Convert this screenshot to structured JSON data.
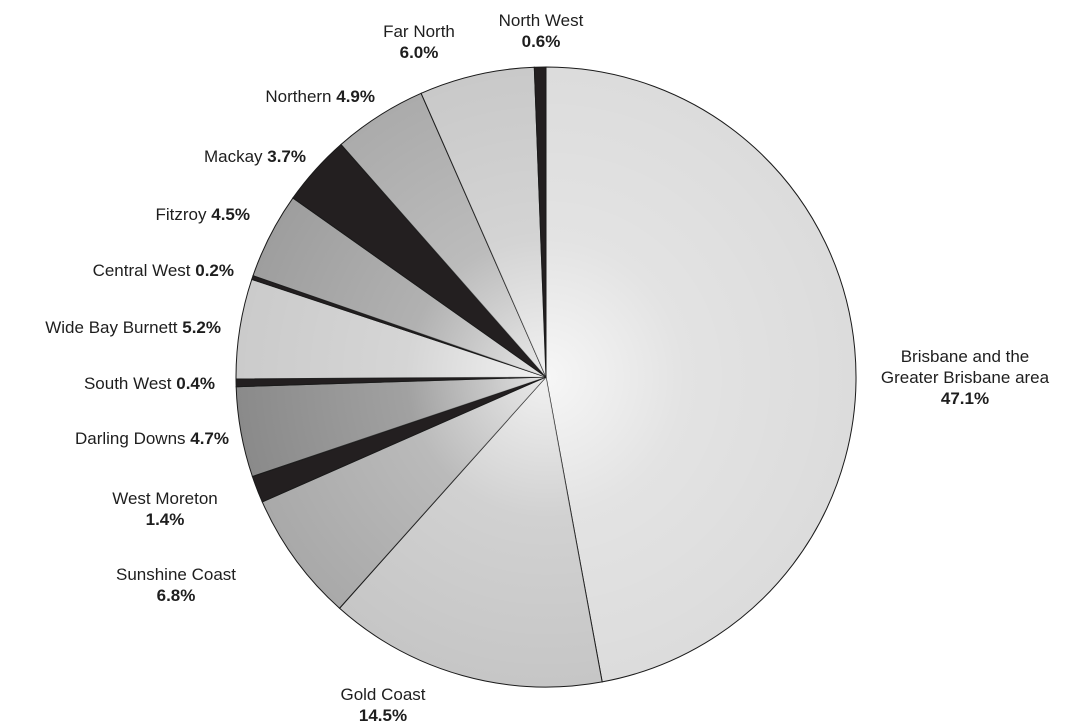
{
  "chart_data": {
    "type": "pie",
    "title": "",
    "start_angle_deg": 0,
    "direction": "clockwise",
    "slices": [
      {
        "label": "Brisbane and the Greater Brisbane area",
        "label_lines": [
          "Brisbane and the",
          "Greater Brisbane area"
        ],
        "display": "47.1%",
        "value": 47.1,
        "color": "#dcdcdc"
      },
      {
        "label": "Gold Coast",
        "label_lines": [
          "Gold Coast"
        ],
        "display": "14.5%",
        "value": 14.5,
        "color": "#c6c6c6"
      },
      {
        "label": "Sunshine Coast",
        "label_lines": [
          "Sunshine Coast"
        ],
        "display": "6.8%",
        "value": 6.8,
        "color": "#a9a9a9"
      },
      {
        "label": "West Moreton",
        "label_lines": [
          "West Moreton"
        ],
        "display": "1.4%",
        "value": 1.4,
        "color": "#231f20"
      },
      {
        "label": "Darling Downs",
        "label_lines": [
          "Darling Downs"
        ],
        "display": "4.7%",
        "value": 4.7,
        "color": "#8a8a8a"
      },
      {
        "label": "South West",
        "label_lines": [
          "South West"
        ],
        "display": "0.4%",
        "value": 0.4,
        "color": "#231f20"
      },
      {
        "label": "Wide Bay Burnett",
        "label_lines": [
          "Wide Bay Burnett"
        ],
        "display": "5.2%",
        "value": 5.2,
        "color": "#cbcbcb"
      },
      {
        "label": "Central West",
        "label_lines": [
          "Central West"
        ],
        "display": "0.2%",
        "value": 0.2,
        "color": "#231f20"
      },
      {
        "label": "Fitzroy",
        "label_lines": [
          "Fitzroy"
        ],
        "display": "4.5%",
        "value": 4.5,
        "color": "#9e9e9e"
      },
      {
        "label": "Mackay",
        "label_lines": [
          "Mackay"
        ],
        "display": "3.7%",
        "value": 3.7,
        "color": "#231f20"
      },
      {
        "label": "Northern",
        "label_lines": [
          "Northern"
        ],
        "display": "4.9%",
        "value": 4.9,
        "color": "#ababab"
      },
      {
        "label": "Far North",
        "label_lines": [
          "Far North"
        ],
        "display": "6.0%",
        "value": 6.0,
        "color": "#c9c9c9"
      },
      {
        "label": "North West",
        "label_lines": [
          "North West"
        ],
        "display": "0.6%",
        "value": 0.6,
        "color": "#231f20"
      }
    ]
  }
}
